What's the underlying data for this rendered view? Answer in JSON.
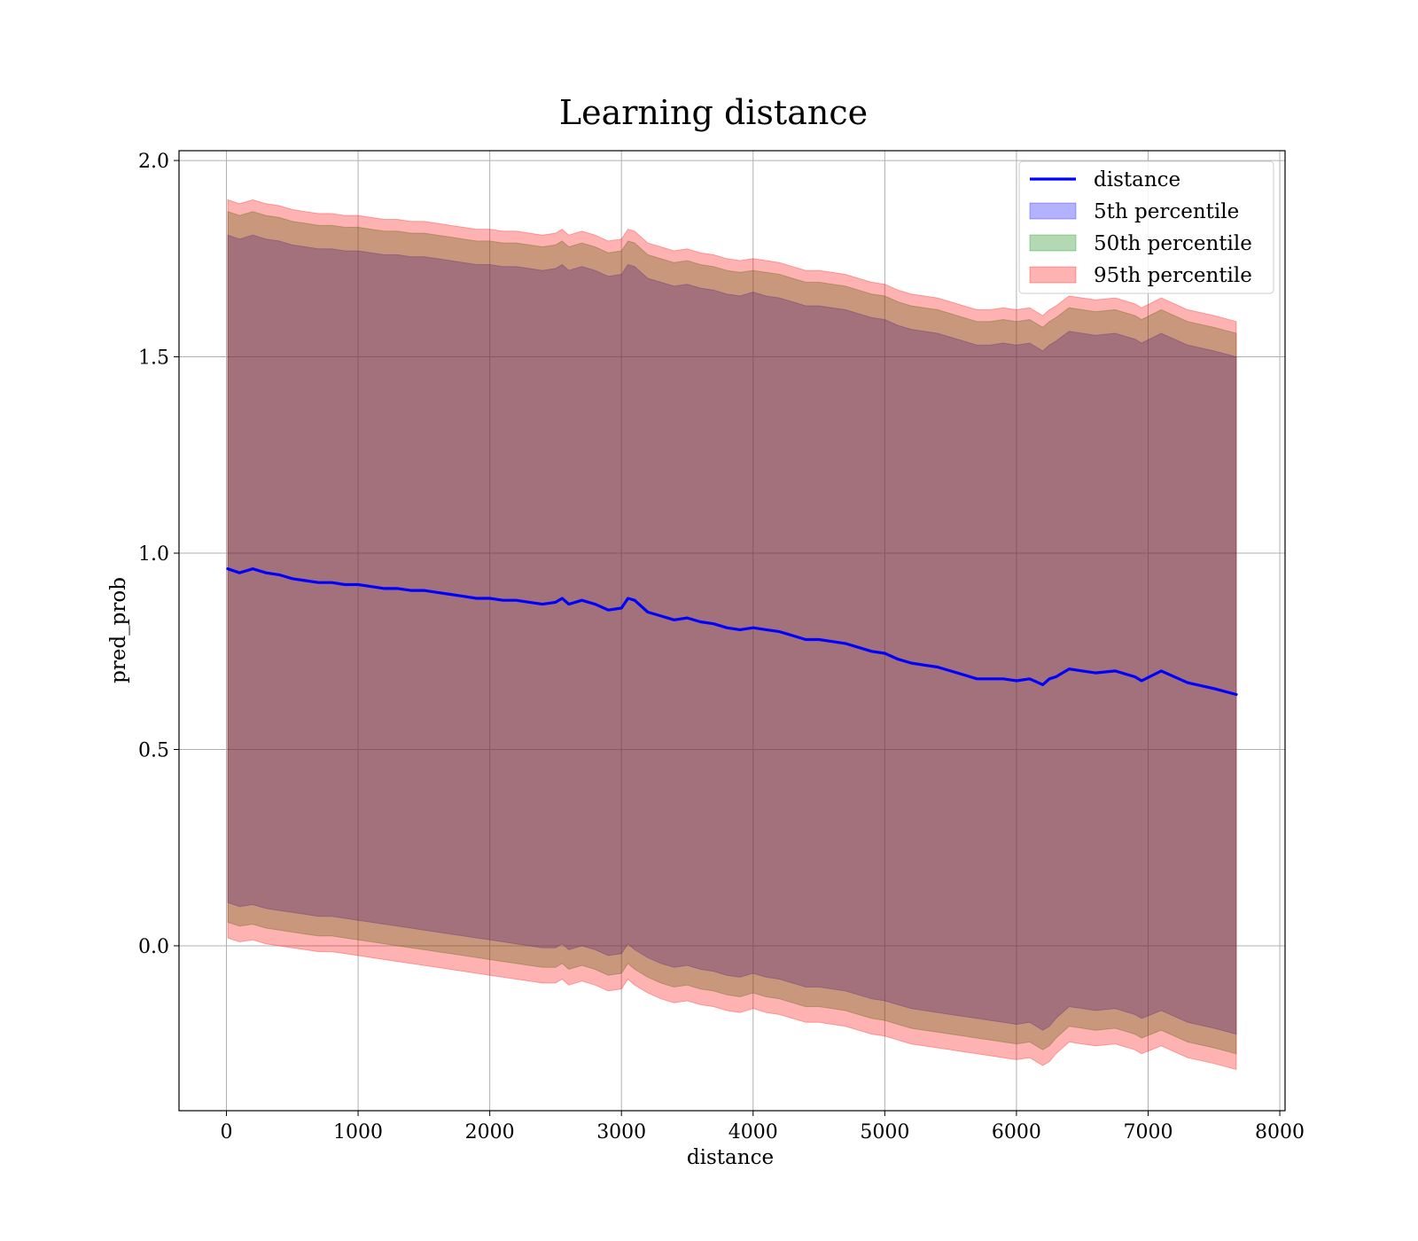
{
  "chart_data": {
    "type": "area",
    "title": "Learning distance",
    "xlabel": "distance",
    "ylabel": "pred_prob",
    "xlim": [
      -360,
      8040
    ],
    "ylim": [
      -0.42,
      2.025
    ],
    "xticks": [
      0,
      1000,
      2000,
      3000,
      4000,
      5000,
      6000,
      7000,
      8000
    ],
    "xtick_labels": [
      "0",
      "1000",
      "2000",
      "3000",
      "4000",
      "5000",
      "6000",
      "7000",
      "8000"
    ],
    "yticks": [
      0.0,
      0.5,
      1.0,
      1.5,
      2.0
    ],
    "ytick_labels": [
      "0.0",
      "0.5",
      "1.0",
      "1.5",
      "2.0"
    ],
    "grid": true,
    "legend_position": "top-right",
    "colors": {
      "line": "#0000ff",
      "band_5th": "#0000ff",
      "band_50th": "#008000",
      "band_95th": "#ff0000",
      "grid": "#b0b0b0"
    },
    "x": [
      10,
      100,
      200,
      300,
      400,
      500,
      600,
      700,
      800,
      900,
      1000,
      1100,
      1200,
      1300,
      1400,
      1500,
      1600,
      1700,
      1800,
      1900,
      2000,
      2100,
      2200,
      2300,
      2400,
      2500,
      2550,
      2600,
      2700,
      2800,
      2900,
      3000,
      3050,
      3100,
      3200,
      3300,
      3400,
      3500,
      3600,
      3700,
      3800,
      3900,
      4000,
      4100,
      4200,
      4300,
      4400,
      4500,
      4600,
      4700,
      4800,
      4900,
      5000,
      5100,
      5200,
      5300,
      5400,
      5500,
      5600,
      5700,
      5800,
      5900,
      6000,
      6100,
      6200,
      6250,
      6300,
      6400,
      6500,
      6600,
      6750,
      6900,
      6950,
      7100,
      7300,
      7500,
      7670
    ],
    "series": [
      {
        "name": "distance",
        "kind": "line",
        "values": [
          0.96,
          0.95,
          0.96,
          0.95,
          0.945,
          0.935,
          0.93,
          0.925,
          0.925,
          0.92,
          0.92,
          0.915,
          0.91,
          0.91,
          0.905,
          0.905,
          0.9,
          0.895,
          0.89,
          0.885,
          0.885,
          0.88,
          0.88,
          0.875,
          0.87,
          0.875,
          0.885,
          0.87,
          0.88,
          0.87,
          0.855,
          0.86,
          0.885,
          0.88,
          0.85,
          0.84,
          0.83,
          0.835,
          0.825,
          0.82,
          0.81,
          0.805,
          0.81,
          0.805,
          0.8,
          0.79,
          0.78,
          0.78,
          0.775,
          0.77,
          0.76,
          0.75,
          0.745,
          0.73,
          0.72,
          0.715,
          0.71,
          0.7,
          0.69,
          0.68,
          0.68,
          0.68,
          0.675,
          0.68,
          0.665,
          0.68,
          0.685,
          0.705,
          0.7,
          0.695,
          0.7,
          0.685,
          0.675,
          0.7,
          0.67,
          0.655,
          0.64
        ]
      },
      {
        "name": "5th percentile",
        "kind": "band",
        "lower": [
          0.11,
          0.1,
          0.105,
          0.095,
          0.09,
          0.085,
          0.08,
          0.075,
          0.075,
          0.07,
          0.065,
          0.06,
          0.055,
          0.05,
          0.045,
          0.04,
          0.035,
          0.03,
          0.025,
          0.02,
          0.015,
          0.01,
          0.005,
          0.0,
          -0.005,
          -0.005,
          0.005,
          -0.01,
          0.0,
          -0.01,
          -0.025,
          -0.02,
          0.005,
          -0.01,
          -0.03,
          -0.045,
          -0.055,
          -0.05,
          -0.06,
          -0.065,
          -0.075,
          -0.08,
          -0.07,
          -0.08,
          -0.085,
          -0.095,
          -0.105,
          -0.105,
          -0.11,
          -0.115,
          -0.125,
          -0.135,
          -0.14,
          -0.15,
          -0.16,
          -0.165,
          -0.17,
          -0.175,
          -0.18,
          -0.185,
          -0.19,
          -0.195,
          -0.2,
          -0.195,
          -0.215,
          -0.205,
          -0.185,
          -0.155,
          -0.16,
          -0.165,
          -0.16,
          -0.175,
          -0.185,
          -0.165,
          -0.195,
          -0.21,
          -0.225
        ],
        "upper": [
          1.81,
          1.8,
          1.81,
          1.8,
          1.795,
          1.785,
          1.78,
          1.775,
          1.775,
          1.77,
          1.77,
          1.765,
          1.76,
          1.76,
          1.755,
          1.755,
          1.75,
          1.745,
          1.74,
          1.735,
          1.735,
          1.73,
          1.73,
          1.725,
          1.72,
          1.725,
          1.735,
          1.72,
          1.73,
          1.72,
          1.705,
          1.71,
          1.735,
          1.73,
          1.7,
          1.69,
          1.68,
          1.685,
          1.675,
          1.67,
          1.66,
          1.655,
          1.665,
          1.655,
          1.65,
          1.64,
          1.63,
          1.63,
          1.625,
          1.62,
          1.61,
          1.6,
          1.595,
          1.58,
          1.57,
          1.565,
          1.56,
          1.55,
          1.54,
          1.53,
          1.53,
          1.535,
          1.53,
          1.535,
          1.515,
          1.53,
          1.54,
          1.565,
          1.56,
          1.555,
          1.56,
          1.545,
          1.535,
          1.56,
          1.53,
          1.515,
          1.5
        ]
      },
      {
        "name": "50th percentile",
        "kind": "band",
        "lower": [
          0.06,
          0.05,
          0.055,
          0.045,
          0.04,
          0.035,
          0.03,
          0.025,
          0.025,
          0.02,
          0.015,
          0.01,
          0.005,
          0.0,
          -0.005,
          -0.01,
          -0.015,
          -0.02,
          -0.025,
          -0.03,
          -0.035,
          -0.04,
          -0.045,
          -0.05,
          -0.055,
          -0.055,
          -0.045,
          -0.06,
          -0.05,
          -0.06,
          -0.075,
          -0.07,
          -0.045,
          -0.06,
          -0.08,
          -0.095,
          -0.105,
          -0.1,
          -0.11,
          -0.115,
          -0.125,
          -0.13,
          -0.12,
          -0.13,
          -0.135,
          -0.145,
          -0.155,
          -0.155,
          -0.16,
          -0.165,
          -0.175,
          -0.185,
          -0.19,
          -0.2,
          -0.21,
          -0.215,
          -0.22,
          -0.225,
          -0.23,
          -0.235,
          -0.24,
          -0.245,
          -0.25,
          -0.245,
          -0.265,
          -0.255,
          -0.235,
          -0.205,
          -0.21,
          -0.215,
          -0.21,
          -0.225,
          -0.235,
          -0.215,
          -0.245,
          -0.26,
          -0.275
        ],
        "upper": [
          1.87,
          1.86,
          1.87,
          1.86,
          1.855,
          1.845,
          1.84,
          1.835,
          1.835,
          1.83,
          1.83,
          1.825,
          1.82,
          1.82,
          1.815,
          1.815,
          1.81,
          1.805,
          1.8,
          1.795,
          1.795,
          1.79,
          1.79,
          1.785,
          1.78,
          1.785,
          1.795,
          1.78,
          1.79,
          1.78,
          1.765,
          1.77,
          1.795,
          1.79,
          1.76,
          1.75,
          1.74,
          1.745,
          1.735,
          1.73,
          1.72,
          1.715,
          1.72,
          1.715,
          1.71,
          1.7,
          1.69,
          1.69,
          1.685,
          1.68,
          1.67,
          1.66,
          1.655,
          1.64,
          1.63,
          1.625,
          1.62,
          1.61,
          1.6,
          1.59,
          1.59,
          1.595,
          1.59,
          1.595,
          1.575,
          1.59,
          1.6,
          1.625,
          1.62,
          1.615,
          1.62,
          1.605,
          1.595,
          1.62,
          1.59,
          1.575,
          1.56
        ]
      },
      {
        "name": "95th percentile",
        "kind": "band",
        "lower": [
          0.02,
          0.01,
          0.015,
          0.005,
          0.0,
          -0.005,
          -0.01,
          -0.015,
          -0.015,
          -0.02,
          -0.025,
          -0.03,
          -0.035,
          -0.04,
          -0.045,
          -0.05,
          -0.055,
          -0.06,
          -0.065,
          -0.07,
          -0.075,
          -0.08,
          -0.085,
          -0.09,
          -0.095,
          -0.095,
          -0.085,
          -0.1,
          -0.09,
          -0.1,
          -0.115,
          -0.11,
          -0.085,
          -0.1,
          -0.12,
          -0.135,
          -0.145,
          -0.14,
          -0.15,
          -0.155,
          -0.165,
          -0.17,
          -0.16,
          -0.17,
          -0.175,
          -0.185,
          -0.195,
          -0.195,
          -0.2,
          -0.205,
          -0.215,
          -0.225,
          -0.23,
          -0.24,
          -0.25,
          -0.255,
          -0.26,
          -0.265,
          -0.27,
          -0.275,
          -0.28,
          -0.285,
          -0.29,
          -0.285,
          -0.305,
          -0.295,
          -0.275,
          -0.245,
          -0.25,
          -0.255,
          -0.25,
          -0.265,
          -0.275,
          -0.255,
          -0.285,
          -0.3,
          -0.315
        ],
        "upper": [
          1.9,
          1.89,
          1.9,
          1.89,
          1.885,
          1.875,
          1.87,
          1.865,
          1.865,
          1.86,
          1.86,
          1.855,
          1.85,
          1.85,
          1.845,
          1.845,
          1.84,
          1.835,
          1.83,
          1.825,
          1.825,
          1.82,
          1.82,
          1.815,
          1.81,
          1.815,
          1.825,
          1.81,
          1.82,
          1.81,
          1.795,
          1.8,
          1.825,
          1.82,
          1.79,
          1.78,
          1.77,
          1.775,
          1.765,
          1.76,
          1.75,
          1.745,
          1.75,
          1.745,
          1.74,
          1.73,
          1.72,
          1.72,
          1.715,
          1.71,
          1.7,
          1.69,
          1.685,
          1.67,
          1.66,
          1.655,
          1.65,
          1.64,
          1.63,
          1.62,
          1.62,
          1.625,
          1.62,
          1.625,
          1.605,
          1.62,
          1.63,
          1.655,
          1.65,
          1.645,
          1.65,
          1.635,
          1.625,
          1.65,
          1.62,
          1.605,
          1.59
        ]
      }
    ]
  }
}
